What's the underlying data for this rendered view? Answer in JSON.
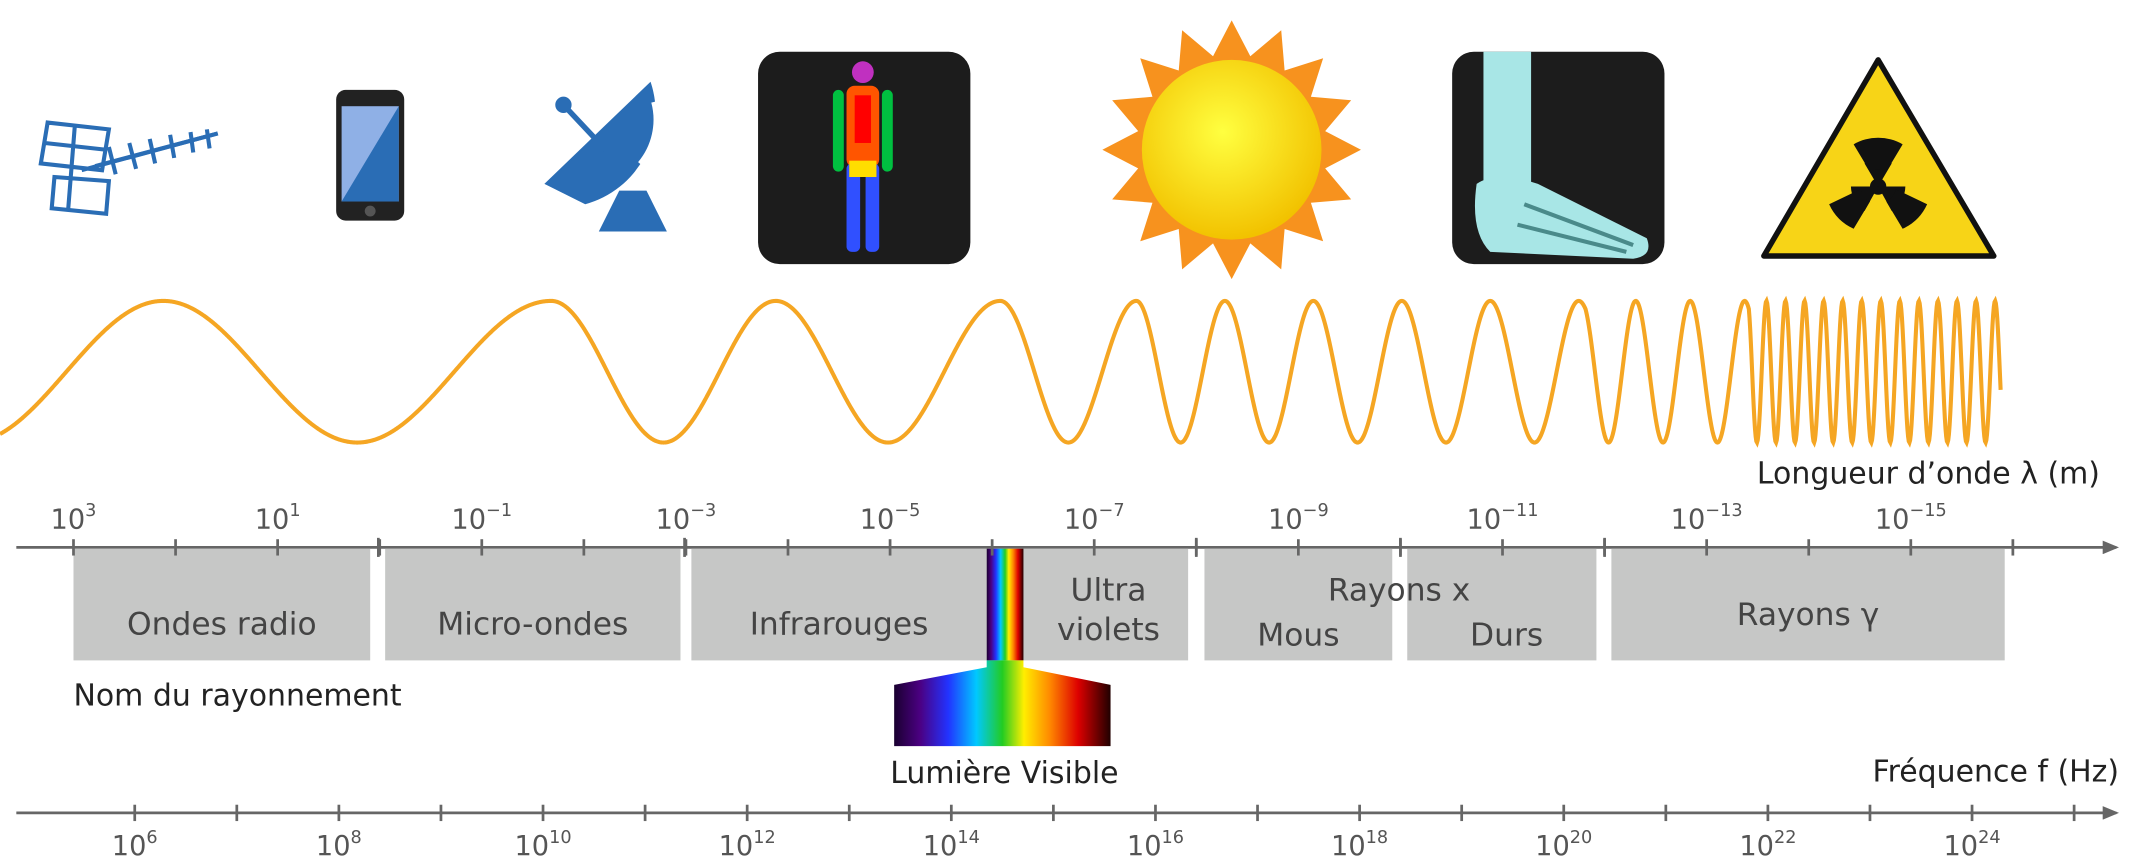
{
  "wavelength_axis": {
    "label": "Longueur d’onde λ (m)",
    "ticks": [
      {
        "base": "10",
        "exp": "3"
      },
      {
        "base": "10",
        "exp": "1"
      },
      {
        "base": "10",
        "exp": "−1"
      },
      {
        "base": "10",
        "exp": "−3"
      },
      {
        "base": "10",
        "exp": "−5"
      },
      {
        "base": "10",
        "exp": "−7"
      },
      {
        "base": "10",
        "exp": "−9"
      },
      {
        "base": "10",
        "exp": "−11"
      },
      {
        "base": "10",
        "exp": "−13"
      },
      {
        "base": "10",
        "exp": "−15"
      }
    ]
  },
  "frequency_axis": {
    "label": "Fréquence f (Hz)",
    "ticks": [
      {
        "base": "10",
        "exp": "6"
      },
      {
        "base": "10",
        "exp": "8"
      },
      {
        "base": "10",
        "exp": "10"
      },
      {
        "base": "10",
        "exp": "12"
      },
      {
        "base": "10",
        "exp": "14"
      },
      {
        "base": "10",
        "exp": "16"
      },
      {
        "base": "10",
        "exp": "18"
      },
      {
        "base": "10",
        "exp": "20"
      },
      {
        "base": "10",
        "exp": "22"
      },
      {
        "base": "10",
        "exp": "24"
      }
    ]
  },
  "bands": [
    {
      "label": "Ondes radio"
    },
    {
      "label": "Micro-ondes"
    },
    {
      "label": "Infrarouges"
    },
    {
      "lines": [
        "Ultra",
        "violets"
      ]
    },
    {
      "label": "Rayons x",
      "sub": [
        "Mous",
        "Durs"
      ]
    },
    {
      "label": "Rayons γ"
    }
  ],
  "band_caption": "Nom du rayonnement",
  "visible_label": "Lumière Visible"
}
